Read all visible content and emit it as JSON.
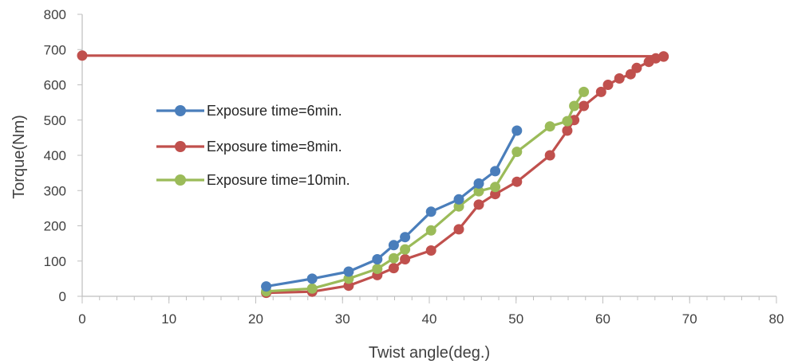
{
  "chart_data": {
    "type": "line",
    "title": "",
    "xlabel": "Twist angle(deg.)",
    "ylabel": "Torque(Nm)",
    "xlim": [
      0,
      80
    ],
    "ylim": [
      0,
      800
    ],
    "xticks": [
      0,
      10,
      20,
      30,
      40,
      50,
      60,
      70,
      80
    ],
    "yticks": [
      0,
      100,
      200,
      300,
      400,
      500,
      600,
      700,
      800
    ],
    "grid": false,
    "legend_position": "left-center",
    "series": [
      {
        "name": "Exposure time=6min.",
        "color": "#4a7ebb",
        "x": [
          21.2,
          26.5,
          30.7,
          34.0,
          35.9,
          37.2,
          40.2,
          43.4,
          45.7,
          47.6,
          50.1
        ],
        "y": [
          28,
          50,
          70,
          105,
          145,
          168,
          240,
          275,
          320,
          355,
          470
        ]
      },
      {
        "name": "Exposure time=8min.",
        "color": "#c0504d",
        "x": [
          21.2,
          26.5,
          30.7,
          34.0,
          35.9,
          37.2,
          40.2,
          43.4,
          45.7,
          47.6,
          50.1,
          53.9,
          55.9,
          56.7,
          57.8,
          59.8,
          60.6,
          61.9,
          63.2,
          63.9,
          65.3,
          66.1,
          67.0
        ],
        "y": [
          10,
          13,
          30,
          60,
          80,
          105,
          130,
          190,
          260,
          290,
          325,
          400,
          470,
          500,
          540,
          580,
          600,
          618,
          630,
          648,
          665,
          675,
          680
        ]
      },
      {
        "name": "Exposure time=10min.",
        "color": "#9bbb59",
        "x": [
          21.2,
          26.5,
          30.7,
          34.0,
          35.9,
          37.2,
          40.2,
          43.4,
          45.7,
          47.6,
          50.1,
          53.9,
          55.9,
          56.7,
          57.8
        ],
        "y": [
          14,
          22,
          50,
          78,
          108,
          133,
          187,
          255,
          298,
          310,
          410,
          482,
          497,
          540,
          580
        ]
      },
      {
        "color": "#c0504d",
        "x": [
          0,
          67.0
        ],
        "y": [
          683,
          681
        ]
      }
    ]
  }
}
